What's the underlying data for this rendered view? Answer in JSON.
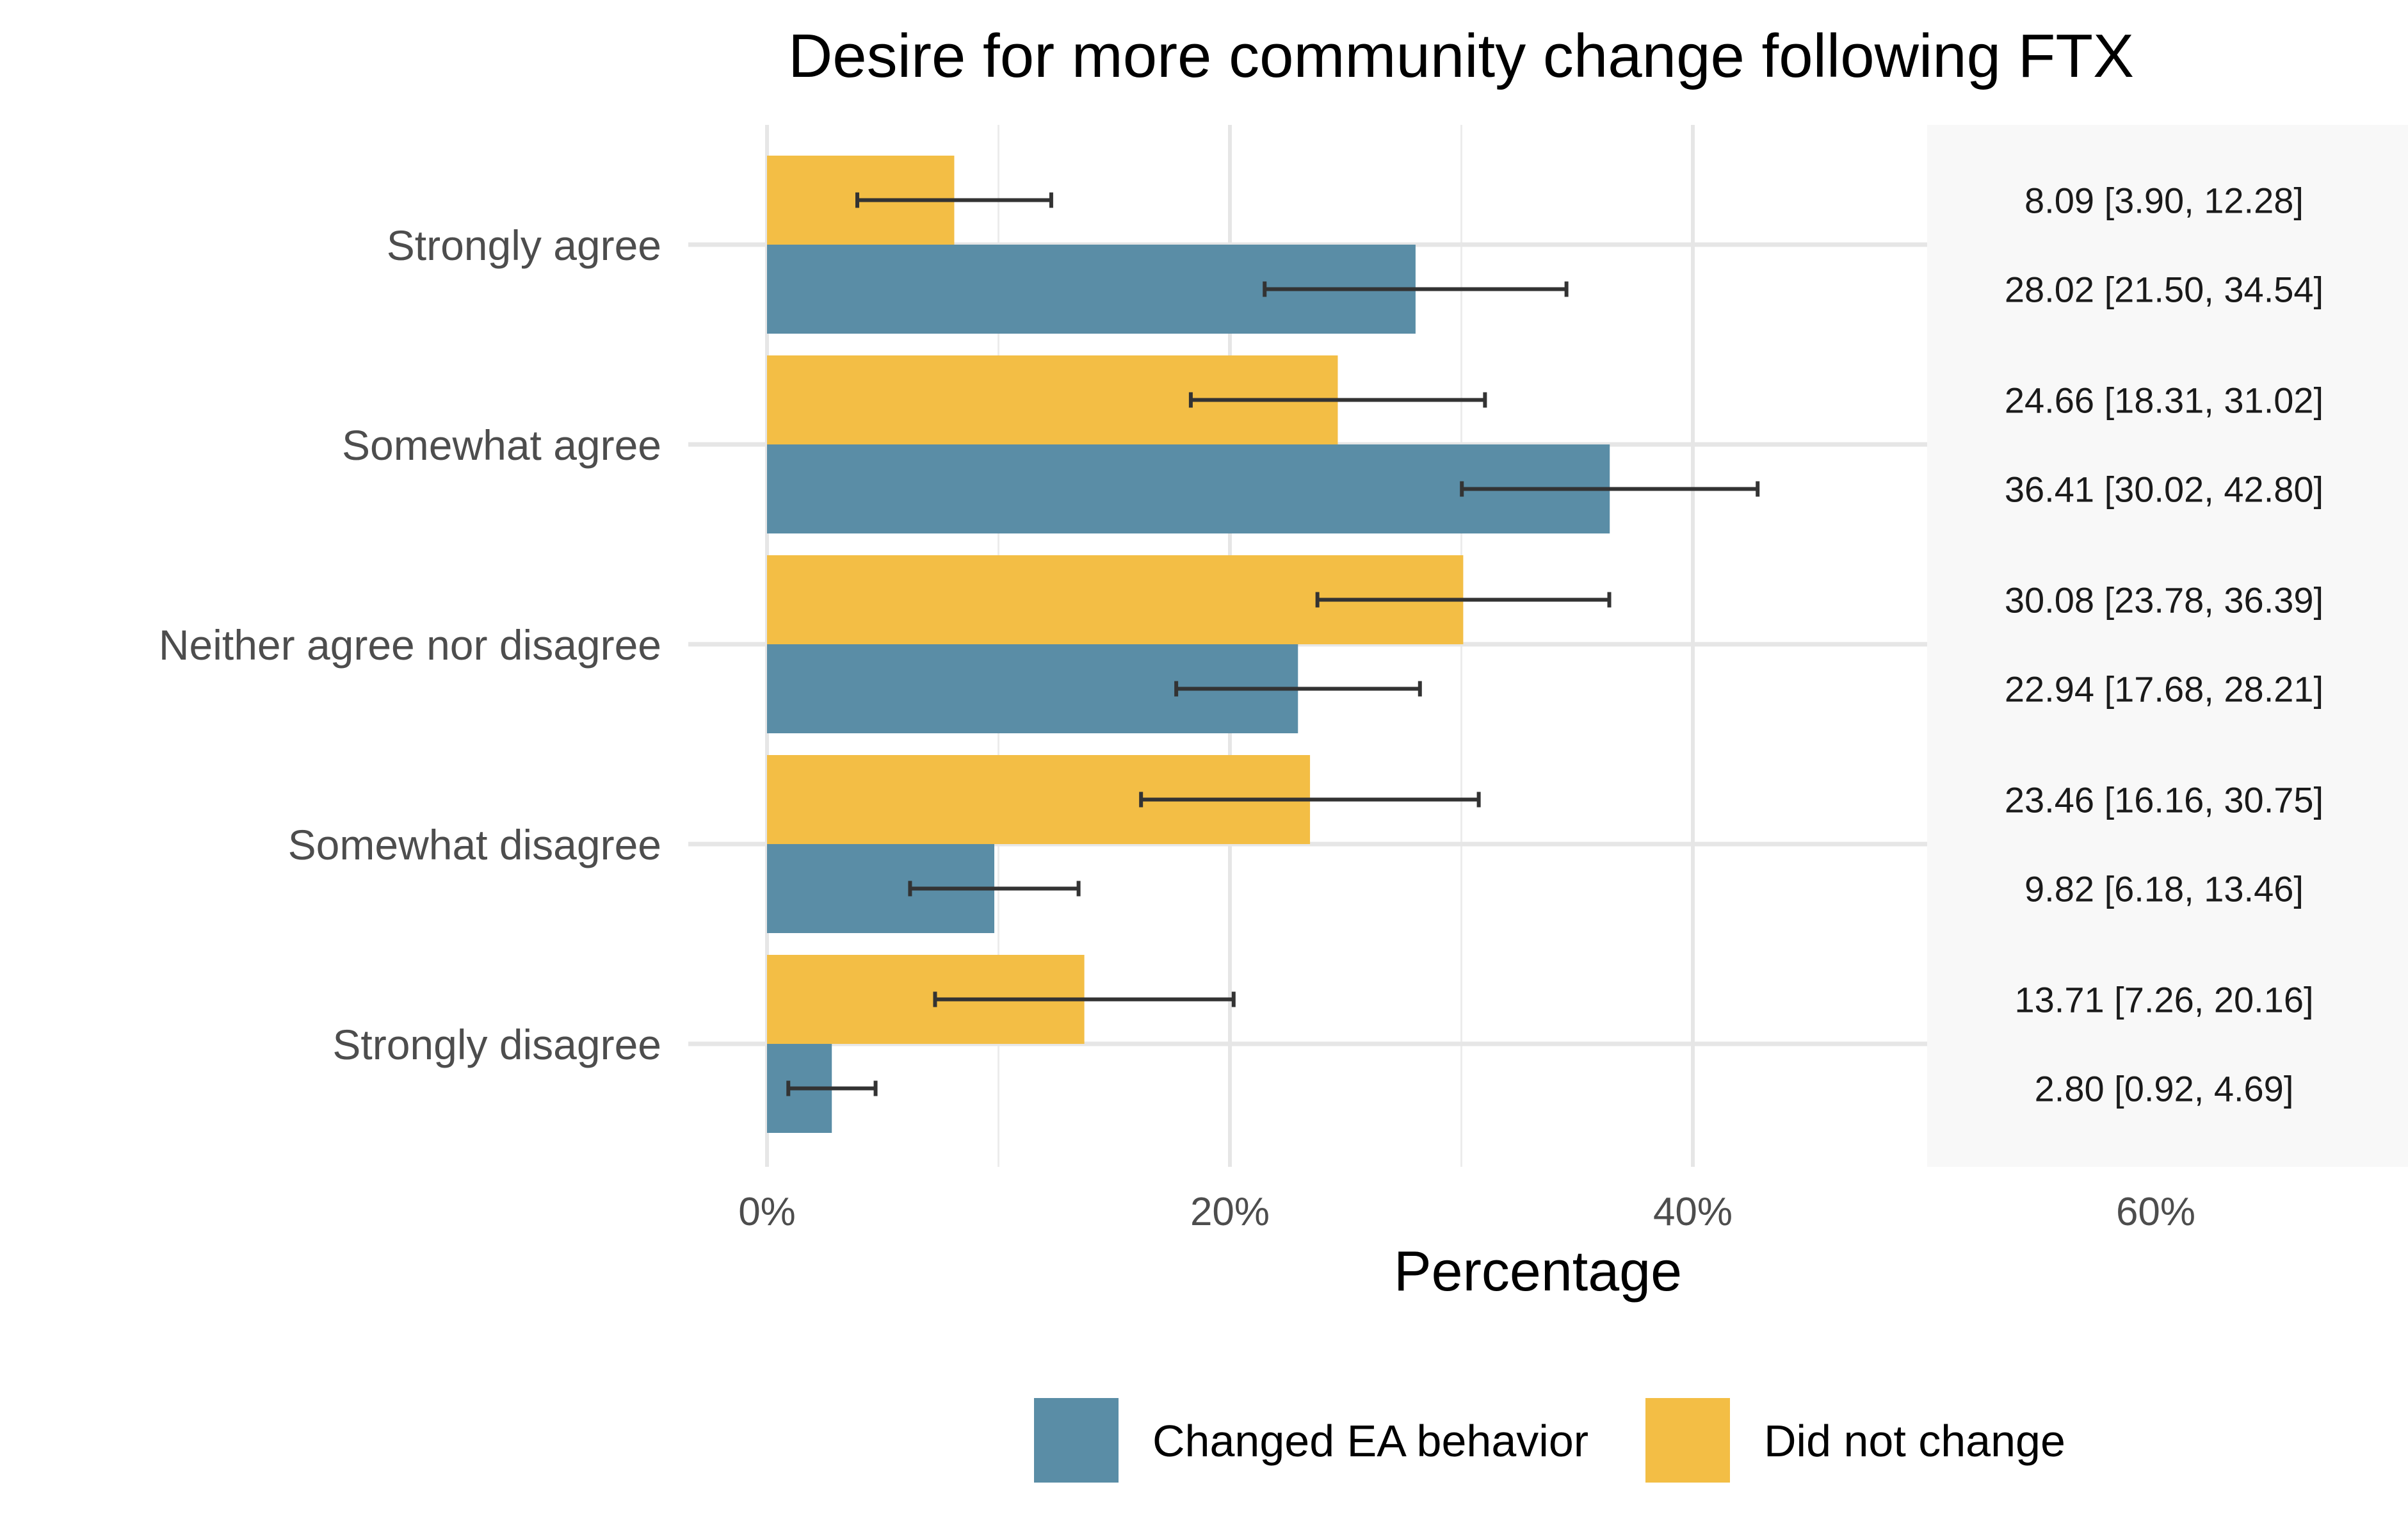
{
  "chart_data": {
    "type": "bar",
    "orientation": "horizontal",
    "title": "Desire for more community change following FTX",
    "xlabel": "Percentage",
    "ylabel": "",
    "xlim": [
      0,
      70
    ],
    "x_ticks": [
      0,
      20,
      40,
      60
    ],
    "x_tick_labels": [
      "0%",
      "20%",
      "40%",
      "60%"
    ],
    "categories": [
      "Strongly agree",
      "Somewhat agree",
      "Neither agree nor disagree",
      "Somewhat disagree",
      "Strongly disagree"
    ],
    "series": [
      {
        "name": "Did not change",
        "color": "#F3BE45",
        "values": [
          8.09,
          24.66,
          30.08,
          23.46,
          13.71
        ],
        "ci_low": [
          3.9,
          18.31,
          23.78,
          16.16,
          7.26
        ],
        "ci_high": [
          12.28,
          31.02,
          36.39,
          30.75,
          20.16
        ],
        "labels": [
          "8.09 [3.90, 12.28]",
          "24.66 [18.31, 31.02]",
          "30.08 [23.78, 36.39]",
          "23.46 [16.16, 30.75]",
          "13.71 [7.26, 20.16]"
        ]
      },
      {
        "name": "Changed EA behavior",
        "color": "#5A8DA6",
        "values": [
          28.02,
          36.41,
          22.94,
          9.82,
          2.8
        ],
        "ci_low": [
          21.5,
          30.02,
          17.68,
          6.18,
          0.92
        ],
        "ci_high": [
          34.54,
          42.8,
          28.21,
          13.46,
          4.69
        ],
        "labels": [
          "28.02 [21.50, 34.54]",
          "36.41 [30.02, 42.80]",
          "22.94 [17.68, 28.21]",
          "9.82 [6.18, 13.46]",
          "2.80 [0.92, 4.69]"
        ]
      }
    ],
    "legend": {
      "position": "bottom",
      "entries": [
        "Changed EA behavior",
        "Did not change"
      ]
    },
    "grid": true,
    "label_panel_background": "#F8F8F8"
  }
}
